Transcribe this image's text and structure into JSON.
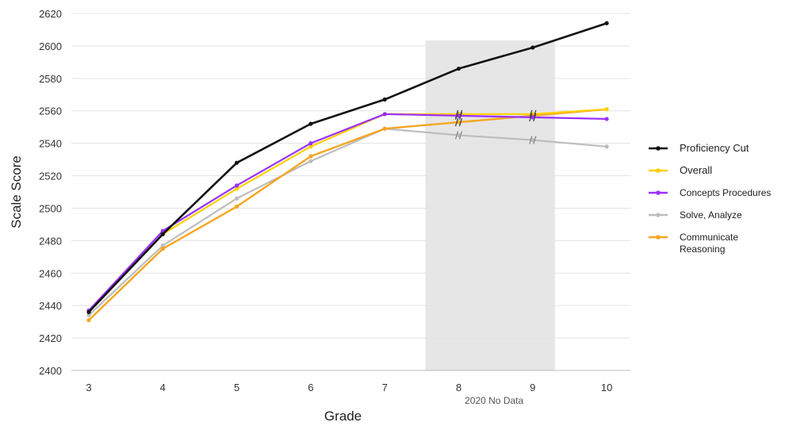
{
  "chart_data": {
    "type": "line",
    "xlabel": "Grade",
    "ylabel": "Scale Score",
    "x": [
      3,
      4,
      5,
      6,
      7,
      8,
      9,
      10
    ],
    "x_tick_labels": [
      "3",
      "4",
      "5",
      "6",
      "7",
      "8",
      "9",
      "10"
    ],
    "ylim": [
      2400,
      2620
    ],
    "y_ticks": [
      2400,
      2420,
      2440,
      2460,
      2480,
      2500,
      2520,
      2540,
      2560,
      2580,
      2600,
      2620
    ],
    "grid": "horizontal",
    "legend_position": "right",
    "shaded_region": {
      "from_grade": 7.55,
      "to_grade": 9.3,
      "label": "2020 No Data",
      "color": "#e6e6e6"
    },
    "series": [
      {
        "name": "Proficiency Cut",
        "color": "#111111",
        "width": 2.6,
        "values": [
          2436,
          2484,
          2528,
          2552,
          2567,
          2586,
          2599,
          2614
        ],
        "break_marks_at": []
      },
      {
        "name": "Overall",
        "color": "#ffd000",
        "width": 2.2,
        "values": [
          2436,
          2484,
          2512,
          2538,
          2558,
          2558,
          2558,
          2561
        ],
        "break_marks_at": [
          8,
          9
        ]
      },
      {
        "name": "Concepts Procedures",
        "color": "#9b30ff",
        "width": 2.2,
        "values": [
          2437,
          2486,
          2514,
          2540,
          2558,
          2557,
          2556,
          2555
        ],
        "break_marks_at": [
          8,
          9
        ]
      },
      {
        "name": "Solve, Analyze",
        "color": "#bdbdbd",
        "width": 2.2,
        "values": [
          2434,
          2477,
          2506,
          2529,
          2549,
          2545,
          2542,
          2538
        ],
        "break_marks_at": [
          8,
          9
        ]
      },
      {
        "name": "Communicate\nReasoning",
        "color": "#f5a623",
        "width": 2.4,
        "values": [
          2431,
          2475,
          2501,
          2532,
          2549,
          2553,
          2557,
          2561
        ],
        "break_marks_at": [
          8
        ]
      }
    ]
  }
}
